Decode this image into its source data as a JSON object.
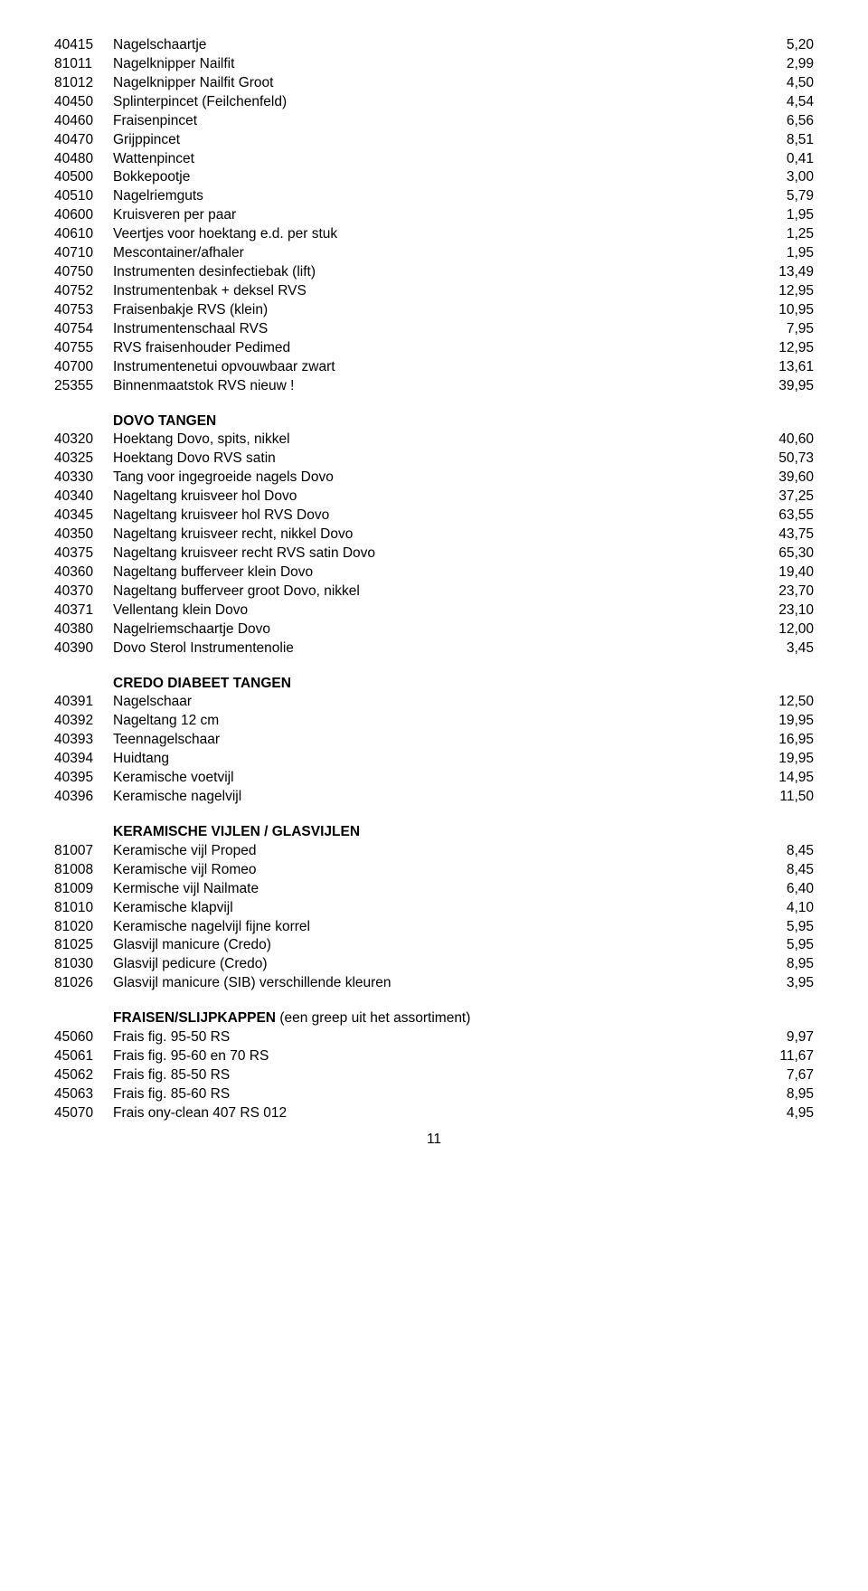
{
  "page_number": "11",
  "groups": [
    {
      "title": null,
      "rows": [
        {
          "code": "40415",
          "desc": "Nagelschaartje",
          "price": "5,20"
        },
        {
          "code": "81011",
          "desc": "Nagelknipper Nailfit",
          "price": "2,99"
        },
        {
          "code": "81012",
          "desc": "Nagelknipper Nailfit Groot",
          "price": "4,50"
        },
        {
          "code": "40450",
          "desc": "Splinterpincet (Feilchenfeld)",
          "price": "4,54"
        },
        {
          "code": "40460",
          "desc": "Fraisenpincet",
          "price": "6,56"
        },
        {
          "code": "40470",
          "desc": "Grijppincet",
          "price": "8,51"
        },
        {
          "code": "40480",
          "desc": "Wattenpincet",
          "price": "0,41"
        },
        {
          "code": "40500",
          "desc": "Bokkepootje",
          "price": "3,00"
        },
        {
          "code": "40510",
          "desc": "Nagelriemguts",
          "price": "5,79"
        },
        {
          "code": "40600",
          "desc": "Kruisveren per paar",
          "price": "1,95"
        },
        {
          "code": "40610",
          "desc": "Veertjes voor hoektang e.d. per stuk",
          "price": "1,25"
        },
        {
          "code": "40710",
          "desc": "Mescontainer/afhaler",
          "price": "1,95"
        },
        {
          "code": "40750",
          "desc": "Instrumenten desinfectiebak (lift)",
          "price": "13,49"
        },
        {
          "code": "40752",
          "desc": "Instrumentenbak + deksel RVS",
          "price": "12,95"
        },
        {
          "code": "40753",
          "desc": "Fraisenbakje RVS (klein)",
          "price": "10,95"
        },
        {
          "code": "40754",
          "desc": "Instrumentenschaal RVS",
          "price": "7,95"
        },
        {
          "code": "40755",
          "desc": "RVS fraisenhouder Pedimed",
          "price": "12,95"
        },
        {
          "code": "40700",
          "desc": "Instrumentenetui opvouwbaar zwart",
          "price": "13,61"
        },
        {
          "code": "25355",
          "desc": "Binnenmaatstok RVS nieuw !",
          "price": "39,95"
        }
      ]
    },
    {
      "title": "DOVO TANGEN",
      "rows": [
        {
          "code": "40320",
          "desc": "Hoektang Dovo, spits, nikkel",
          "price": "40,60"
        },
        {
          "code": "40325",
          "desc": "Hoektang Dovo RVS satin",
          "price": "50,73"
        },
        {
          "code": "40330",
          "desc": "Tang voor ingegroeide nagels Dovo",
          "price": "39,60"
        },
        {
          "code": "40340",
          "desc": "Nageltang kruisveer hol Dovo",
          "price": "37,25"
        },
        {
          "code": "40345",
          "desc": "Nageltang kruisveer hol RVS Dovo",
          "price": "63,55"
        },
        {
          "code": "40350",
          "desc": "Nageltang kruisveer recht, nikkel Dovo",
          "price": "43,75"
        },
        {
          "code": "40375",
          "desc": "Nageltang kruisveer recht RVS satin Dovo",
          "price": "65,30"
        },
        {
          "code": "40360",
          "desc": "Nageltang bufferveer klein Dovo",
          "price": "19,40"
        },
        {
          "code": "40370",
          "desc": "Nageltang bufferveer groot Dovo, nikkel",
          "price": "23,70"
        },
        {
          "code": "40371",
          "desc": "Vellentang klein Dovo",
          "price": "23,10"
        },
        {
          "code": "40380",
          "desc": "Nagelriemschaartje Dovo",
          "price": "12,00"
        },
        {
          "code": "40390",
          "desc": "Dovo Sterol Instrumentenolie",
          "price": "3,45"
        }
      ]
    },
    {
      "title": "CREDO DIABEET TANGEN",
      "rows": [
        {
          "code": "40391",
          "desc": "Nagelschaar",
          "price": "12,50"
        },
        {
          "code": "40392",
          "desc": "Nageltang 12 cm",
          "price": "19,95"
        },
        {
          "code": "40393",
          "desc": "Teennagelschaar",
          "price": "16,95"
        },
        {
          "code": "40394",
          "desc": "Huidtang",
          "price": "19,95"
        },
        {
          "code": "40395",
          "desc": "Keramische voetvijl",
          "price": "14,95"
        },
        {
          "code": "40396",
          "desc": "Keramische nagelvijl",
          "price": "11,50"
        }
      ]
    },
    {
      "title": "KERAMISCHE VIJLEN / GLASVIJLEN",
      "rows": [
        {
          "code": "81007",
          "desc": "Keramische vijl Proped",
          "price": "8,45"
        },
        {
          "code": "81008",
          "desc": "Keramische vijl Romeo",
          "price": "8,45"
        },
        {
          "code": "81009",
          "desc": "Kermische vijl Nailmate",
          "price": "6,40"
        },
        {
          "code": "81010",
          "desc": "Keramische klapvijl",
          "price": "4,10"
        },
        {
          "code": "81020",
          "desc": "Keramische nagelvijl fijne korrel",
          "price": "5,95"
        },
        {
          "code": "81025",
          "desc": "Glasvijl manicure (Credo)",
          "price": "5,95"
        },
        {
          "code": "81030",
          "desc": "Glasvijl pedicure (Credo)",
          "price": "8,95"
        },
        {
          "code": "81026",
          "desc": "Glasvijl manicure (SIB) verschillende kleuren",
          "price": "3,95"
        }
      ]
    },
    {
      "title": "FRAISEN/SLIJPKAPPEN",
      "title_suffix": " (een greep uit het assortiment)",
      "rows": [
        {
          "code": "45060",
          "desc": "Frais fig. 95-50 RS",
          "price": "9,97"
        },
        {
          "code": "45061",
          "desc": "Frais fig. 95-60 en 70 RS",
          "price": "11,67"
        },
        {
          "code": "45062",
          "desc": "Frais fig. 85-50 RS",
          "price": "7,67"
        },
        {
          "code": "45063",
          "desc": "Frais fig. 85-60 RS",
          "price": "8,95"
        },
        {
          "code": "45070",
          "desc": "Frais ony-clean 407 RS 012",
          "price": "4,95"
        }
      ]
    }
  ]
}
